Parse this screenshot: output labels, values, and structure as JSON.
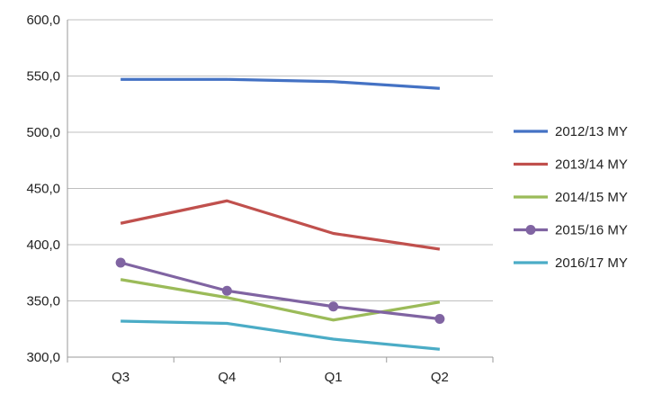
{
  "chart_data": {
    "type": "line",
    "categories": [
      "Q3",
      "Q4",
      "Q1",
      "Q2"
    ],
    "ylim": [
      300,
      600
    ],
    "yticks": [
      "300,0",
      "350,0",
      "400,0",
      "450,0",
      "500,0",
      "550,0",
      "600,0"
    ],
    "grid": "horizontal",
    "legend_position": "right",
    "series": [
      {
        "name": "2012/13 MY",
        "color": "#4472C4",
        "marker": "none",
        "values": [
          547,
          547,
          545,
          539
        ]
      },
      {
        "name": "2013/14 MY",
        "color": "#C0504D",
        "marker": "none",
        "values": [
          419,
          439,
          410,
          396
        ]
      },
      {
        "name": "2014/15 MY",
        "color": "#9BBB59",
        "marker": "none",
        "values": [
          369,
          353,
          333,
          349
        ]
      },
      {
        "name": "2015/16 MY",
        "color": "#8064A2",
        "marker": "circle",
        "values": [
          384,
          359,
          345,
          334
        ]
      },
      {
        "name": "2016/17 MY",
        "color": "#4BACC6",
        "marker": "none",
        "values": [
          332,
          330,
          316,
          307
        ]
      }
    ]
  }
}
